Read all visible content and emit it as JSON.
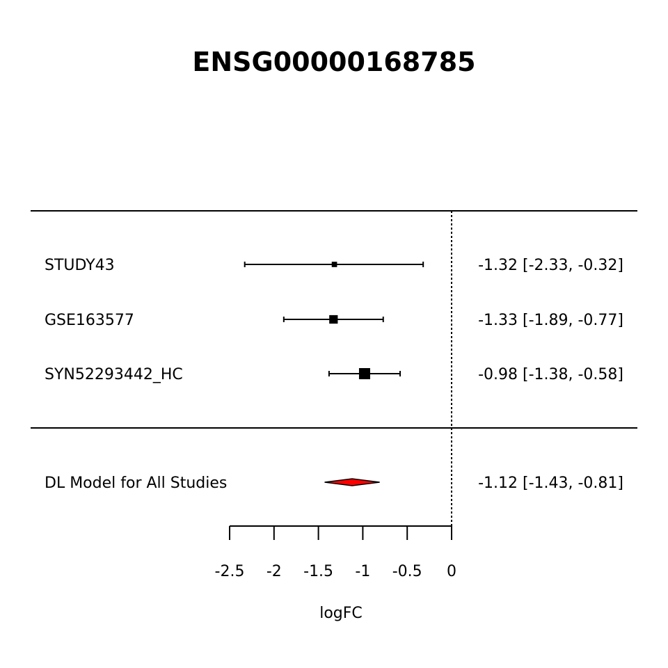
{
  "chart_data": {
    "type": "forest",
    "title": "ENSG00000168785",
    "xlabel": "logFC",
    "xlim": [
      -2.5,
      0
    ],
    "x_ticks": [
      -2.5,
      -2,
      -1.5,
      -1,
      -0.5,
      0
    ],
    "x_tick_labels": [
      "-2.5",
      "-2",
      "-1.5",
      "-1",
      "-0.5",
      "0"
    ],
    "reference_line": 0,
    "studies": [
      {
        "label": "STUDY43",
        "estimate": -1.32,
        "lower": -2.33,
        "upper": -0.32,
        "text": "-1.32 [-2.33, -0.32]",
        "weight": 0.06
      },
      {
        "label": "GSE163577",
        "estimate": -1.33,
        "lower": -1.89,
        "upper": -0.77,
        "text": "-1.33 [-1.89, -0.77]",
        "weight": 0.3
      },
      {
        "label": "SYN52293442_HC",
        "estimate": -0.98,
        "lower": -1.38,
        "upper": -0.58,
        "text": "-0.98 [-1.38, -0.58]",
        "weight": 0.64
      }
    ],
    "summary": {
      "label": "DL Model for All Studies",
      "estimate": -1.12,
      "lower": -1.43,
      "upper": -0.81,
      "text": "-1.12 [-1.43, -0.81]"
    },
    "colors": {
      "summary_fill": "#ff0000",
      "ink": "#000000"
    }
  }
}
